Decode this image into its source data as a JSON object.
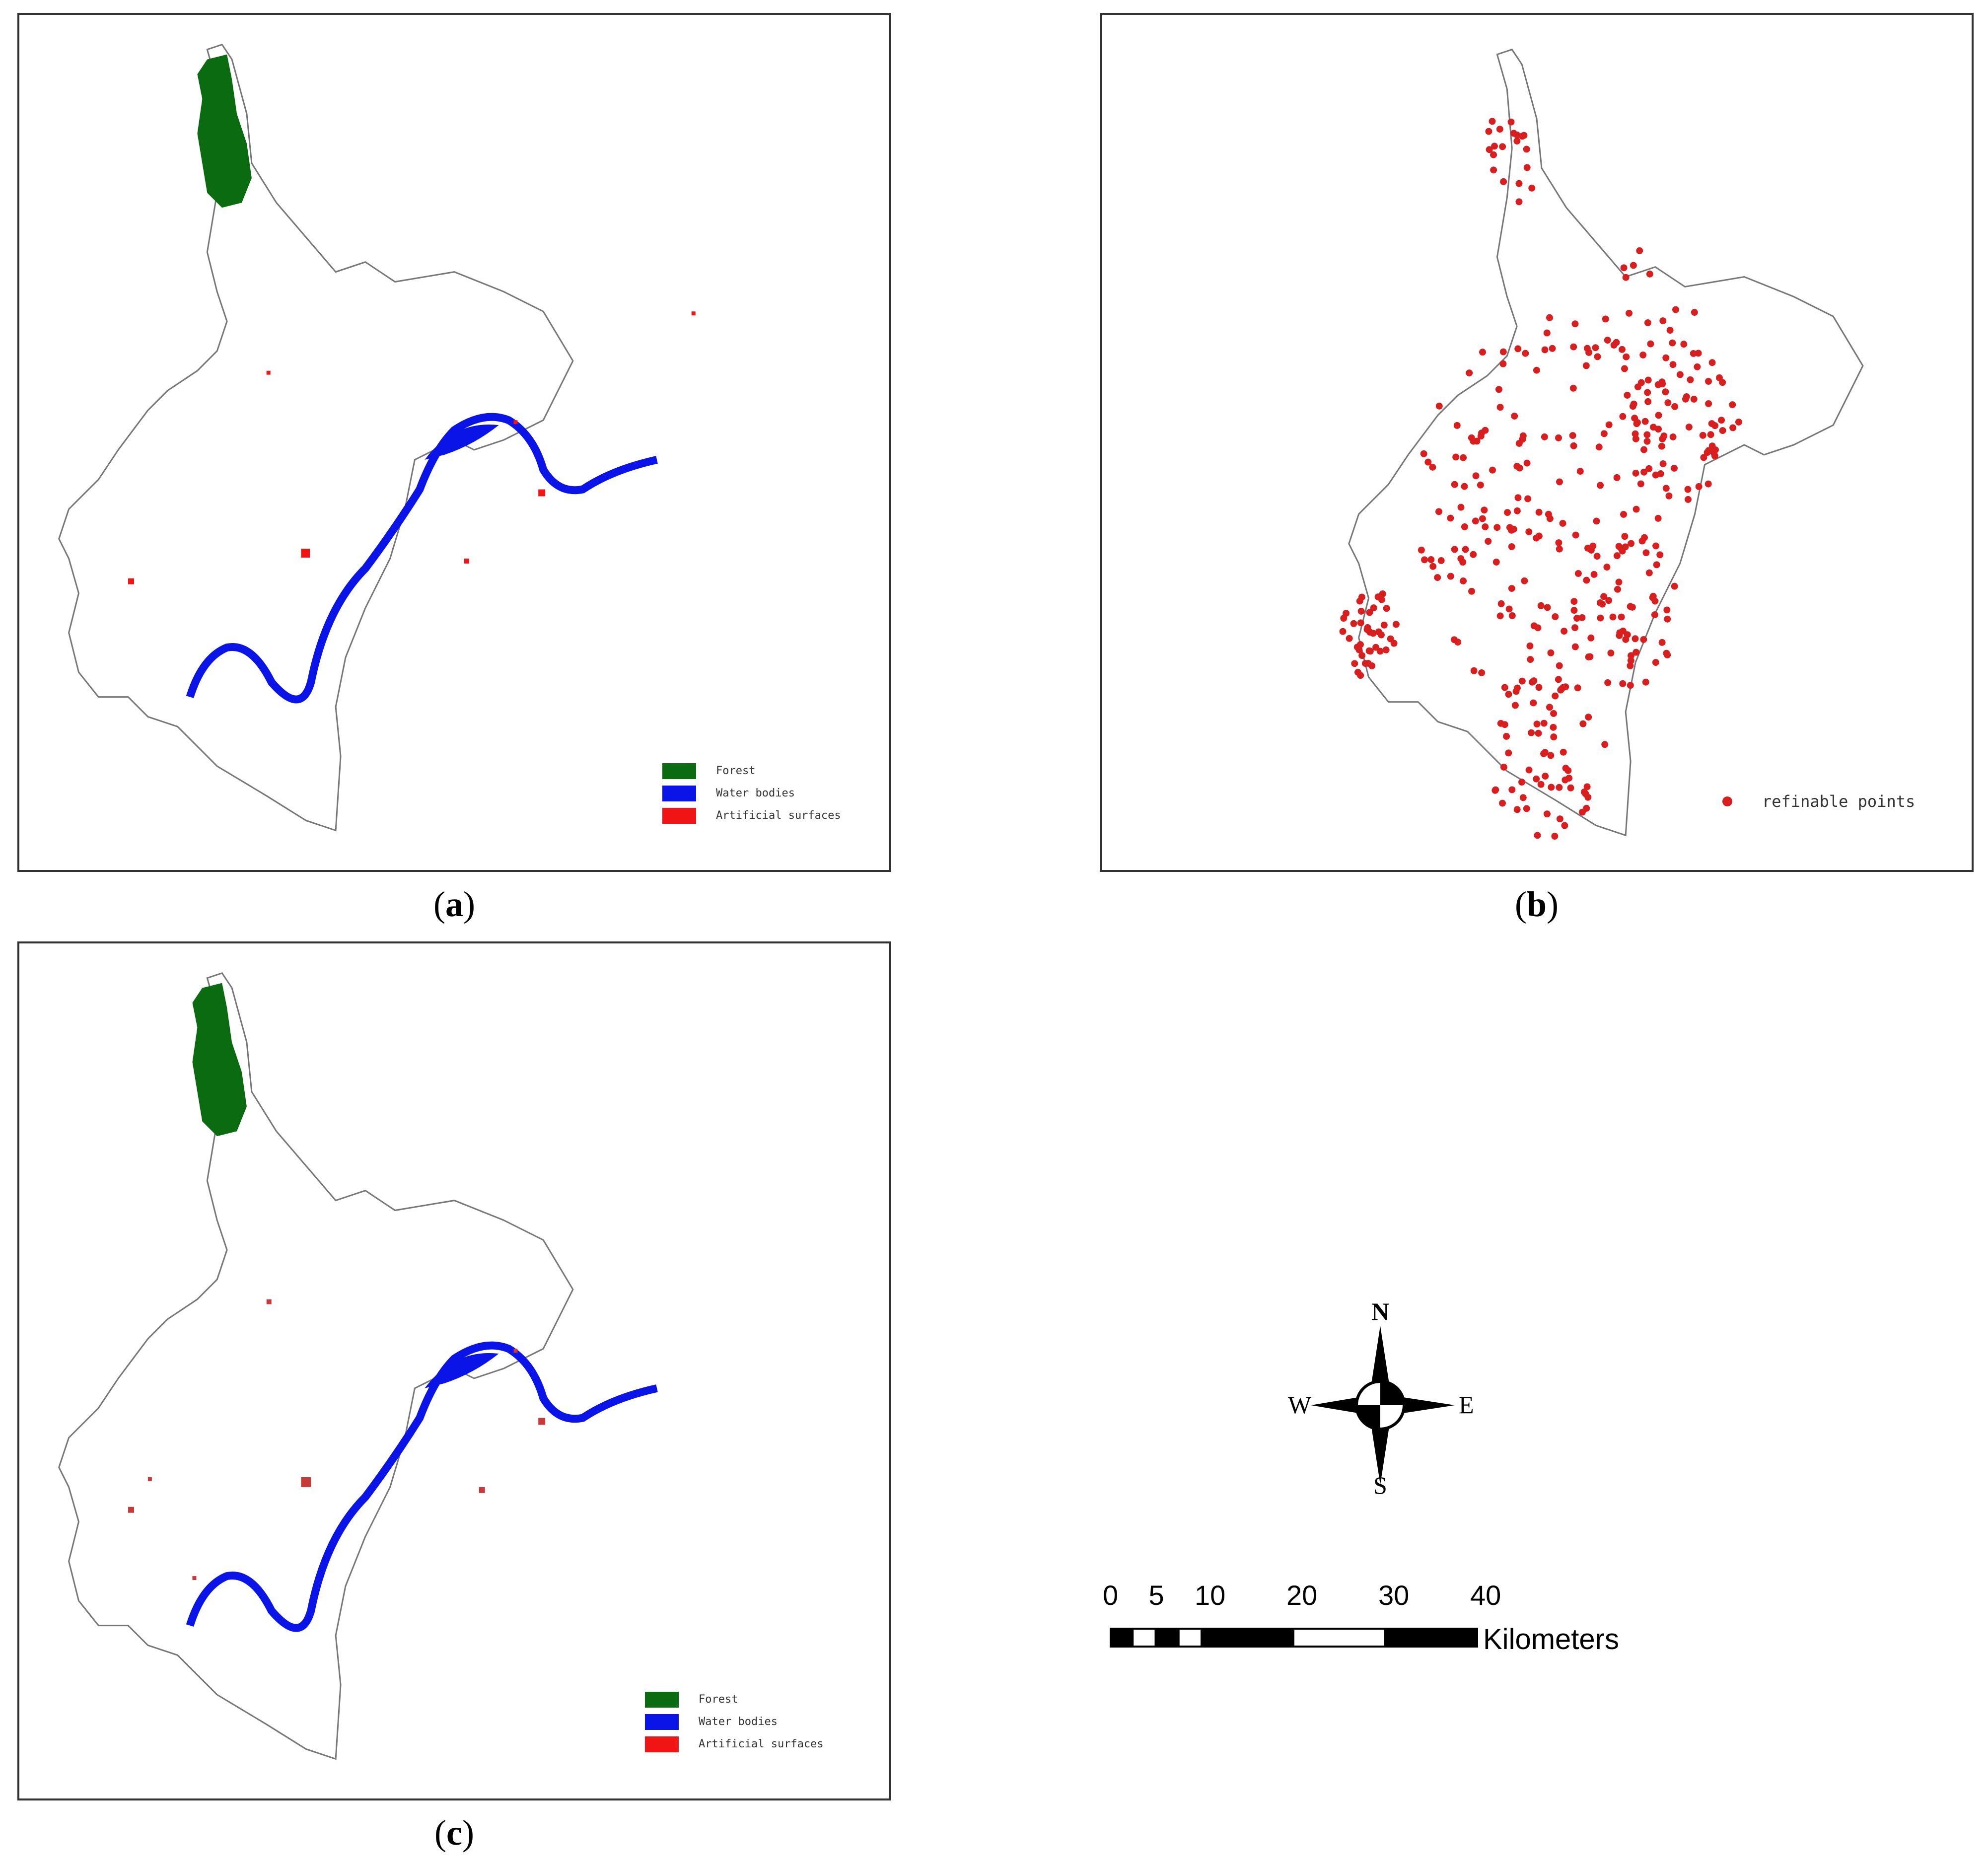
{
  "panels": {
    "a": {
      "caption_label": "a",
      "legend": [
        {
          "label": "Forest",
          "color": "#0b6b10"
        },
        {
          "label": "Water bodies",
          "color": "#0a14e6"
        },
        {
          "label": "Artificial surfaces",
          "color": "#f01414"
        }
      ]
    },
    "b": {
      "caption_label": "b",
      "legend": [
        {
          "label": "refinable points",
          "color": "#d81e1e"
        }
      ]
    },
    "c": {
      "caption_label": "c",
      "legend": [
        {
          "label": "Forest",
          "color": "#0b6b10"
        },
        {
          "label": "Water bodies",
          "color": "#0a14e6"
        },
        {
          "label": "Artificial surfaces",
          "color": "#f01414"
        }
      ]
    }
  },
  "compass": {
    "n": "N",
    "s": "S",
    "e": "E",
    "w": "W"
  },
  "scalebar": {
    "ticks": [
      "0",
      "5",
      "10",
      "20",
      "30",
      "40"
    ],
    "tick_values": [
      0,
      5,
      10,
      20,
      30,
      40
    ],
    "units": "Kilometers"
  },
  "colors": {
    "forest": "#0b6b10",
    "water": "#0a14e6",
    "artificial": "#f01414",
    "points": "#d81e1e",
    "boundary": "#777777"
  }
}
